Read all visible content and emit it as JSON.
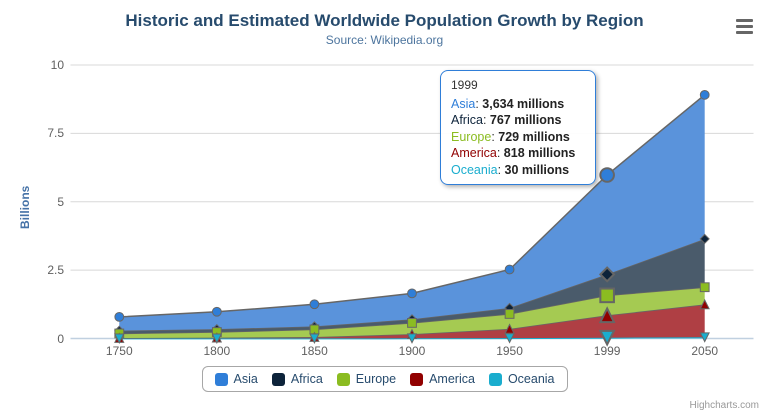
{
  "header": {
    "title": "Historic and Estimated Worldwide Population Growth by Region",
    "subtitle": "Source: Wikipedia.org"
  },
  "chart_data": {
    "type": "area",
    "stacking": "normal",
    "title": "Historic and Estimated Worldwide Population Growth by Region",
    "subtitle": "Source: Wikipedia.org",
    "categories": [
      "1750",
      "1800",
      "1850",
      "1900",
      "1950",
      "1999",
      "2050"
    ],
    "series": [
      {
        "name": "Asia",
        "color": "#2f7ed8",
        "fill": "#5a93db",
        "marker": "circle",
        "values": [
          502,
          635,
          809,
          947,
          1402,
          3634,
          5268
        ]
      },
      {
        "name": "Africa",
        "color": "#0d233a",
        "fill": "#4a5b6b",
        "marker": "diamond",
        "values": [
          106,
          107,
          111,
          133,
          221,
          767,
          1766
        ]
      },
      {
        "name": "Europe",
        "color": "#8bbc21",
        "fill": "#a5ca52",
        "marker": "square",
        "values": [
          163,
          203,
          276,
          408,
          547,
          729,
          628
        ]
      },
      {
        "name": "America",
        "color": "#910000",
        "fill": "#af3f44",
        "marker": "triangle",
        "values": [
          18,
          31,
          54,
          156,
          339,
          818,
          1201
        ]
      },
      {
        "name": "Oceania",
        "color": "#1aadce",
        "fill": "#53c1da",
        "marker": "triangle-down",
        "values": [
          2,
          2,
          2,
          6,
          13,
          30,
          46
        ]
      }
    ],
    "values_unit": "millions",
    "xlabel": "",
    "ylabel": "Billions",
    "yAxis": {
      "title": "Billions",
      "ticks": [
        "0",
        "2.5",
        "5",
        "7.5",
        "10"
      ],
      "tick_values": [
        0,
        2.5,
        5,
        7.5,
        10
      ],
      "max": 10,
      "unit_divisor": 1000
    },
    "hover_index": 5,
    "legend_position": "bottom",
    "grid": "horizontal",
    "style": {
      "line_color": "#666666",
      "grid_color": "#d8d8d8",
      "axis_line_color": "#c0d0e0",
      "oceania_line_width": 2
    }
  },
  "tooltip": {
    "title": "1999",
    "separator": ": ",
    "rows": [
      {
        "name": "Asia",
        "color": "#2f7ed8",
        "value": "3,634 millions"
      },
      {
        "name": "Africa",
        "color": "#0d233a",
        "value": "767 millions"
      },
      {
        "name": "Europe",
        "color": "#8bbc21",
        "value": "729 millions"
      },
      {
        "name": "America",
        "color": "#910000",
        "value": "818 millions"
      },
      {
        "name": "Oceania",
        "color": "#1aadce",
        "value": "30 millions"
      }
    ]
  },
  "legend": {
    "items": [
      "Asia",
      "Africa",
      "Europe",
      "America",
      "Oceania"
    ]
  },
  "credits": "Highcharts.com"
}
